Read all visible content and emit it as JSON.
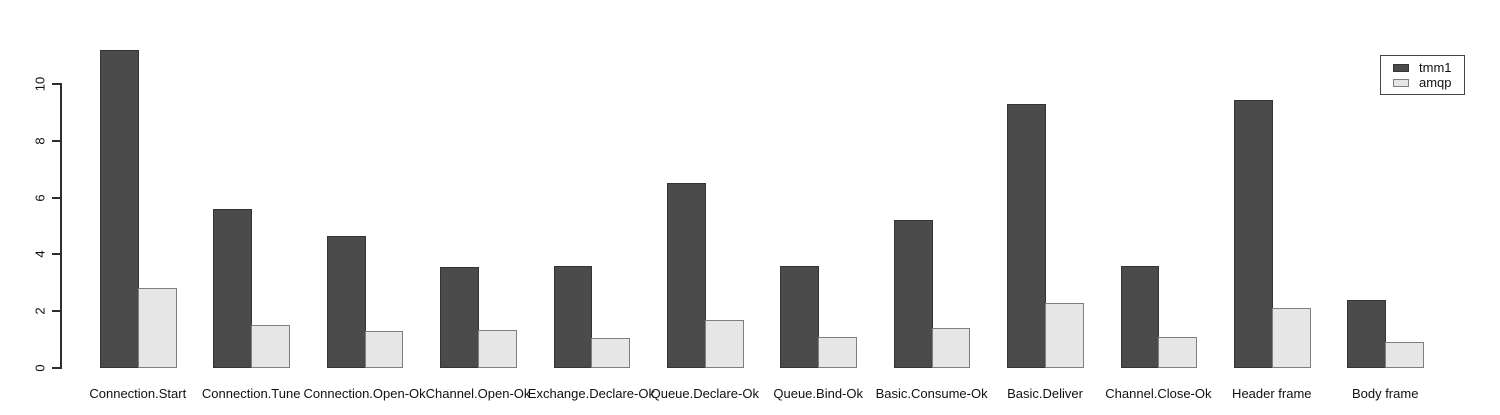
{
  "chart_data": {
    "type": "bar",
    "title": "",
    "xlabel": "",
    "ylabel": "",
    "categories": [
      "Connection.Start",
      "Connection.Tune",
      "Connection.Open-Ok",
      "Channel.Open-Ok",
      "Exchange.Declare-Ok",
      "Queue.Declare-Ok",
      "Queue.Bind-Ok",
      "Basic.Consume-Ok",
      "Basic.Deliver",
      "Channel.Close-Ok",
      "Header frame",
      "Body frame"
    ],
    "series": [
      {
        "name": "tmm1",
        "color": "#4b4b4b",
        "border_color": "#343434",
        "values": [
          11.2,
          5.6,
          4.65,
          3.55,
          3.6,
          6.5,
          3.6,
          5.2,
          9.3,
          3.6,
          9.45,
          2.4
        ]
      },
      {
        "name": "amqp",
        "color": "#e6e6e6",
        "border_color": "#7f7f7f",
        "values": [
          2.8,
          1.5,
          1.3,
          1.35,
          1.05,
          1.7,
          1.1,
          1.4,
          2.3,
          1.1,
          2.1,
          0.9
        ]
      }
    ],
    "yticks": [
      0,
      2,
      4,
      6,
      8,
      10
    ],
    "ylim": [
      0,
      11.4
    ],
    "grid": false,
    "legend_position": "top-right",
    "background_color": "#ffffff",
    "axis_color": "#2e2e2e"
  }
}
